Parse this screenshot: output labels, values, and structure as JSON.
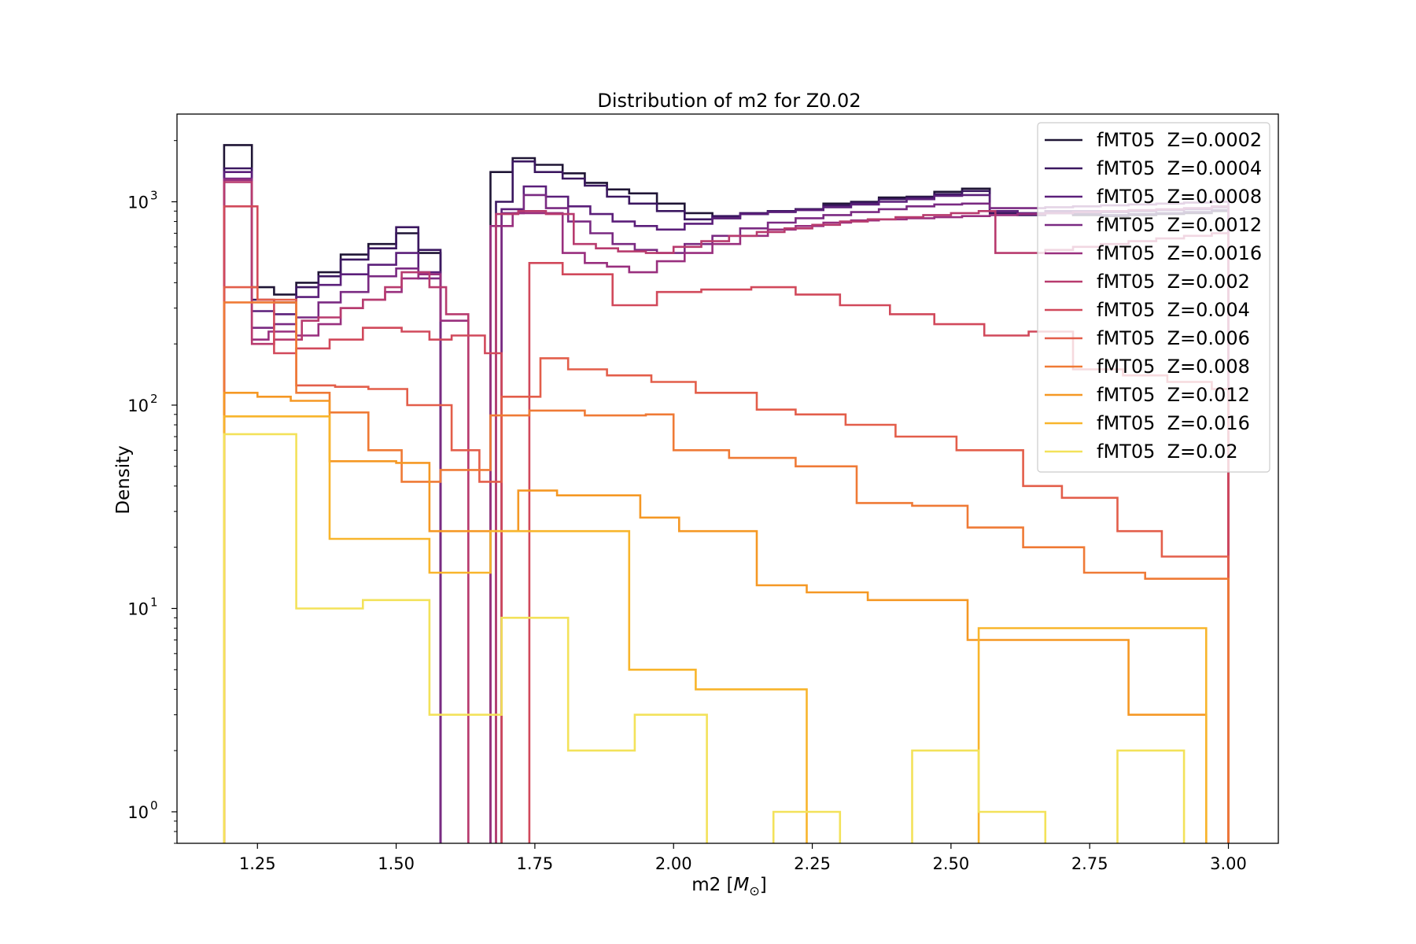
{
  "chart_data": {
    "type": "histogram-step",
    "title": "Distribution of m2 for Z0.02",
    "xlabel": "m2 [",
    "xlabel_math": "M",
    "xlabel_sub": "⊙",
    "xlabel_end": "]",
    "ylabel": "Density",
    "xlim": [
      1.105,
      3.09
    ],
    "ylim": [
      0.7,
      2700
    ],
    "yscale": "log",
    "x_ticks": [
      1.25,
      1.5,
      1.75,
      2.0,
      2.25,
      2.5,
      2.75,
      3.0
    ],
    "x_tick_labels": [
      "1.25",
      "1.50",
      "1.75",
      "2.00",
      "2.25",
      "2.50",
      "2.75",
      "3.00"
    ],
    "y_ticks": [
      1,
      10,
      100,
      1000
    ],
    "y_tick_labels": [
      {
        "base": "10",
        "exp": "0"
      },
      {
        "base": "10",
        "exp": "1"
      },
      {
        "base": "10",
        "exp": "2"
      },
      {
        "base": "10",
        "exp": "3"
      }
    ],
    "legend_location": "top-right",
    "grid": false,
    "series": [
      {
        "name": "fMT05  Z=0.0002",
        "color": "#1f1535",
        "edges": [
          1.19,
          1.24,
          1.28,
          1.32,
          1.36,
          1.4,
          1.45,
          1.5,
          1.54,
          1.58,
          1.62,
          1.67,
          1.71,
          1.75,
          1.8,
          1.84,
          1.88,
          1.92,
          1.97,
          2.02,
          2.07,
          2.12,
          2.17,
          2.22,
          2.27,
          2.32,
          2.37,
          2.42,
          2.47,
          2.52,
          2.57,
          2.62,
          2.67,
          2.72,
          2.77,
          2.82,
          2.87,
          2.92,
          2.97,
          3.0
        ],
        "values": [
          1900,
          380,
          350,
          400,
          450,
          550,
          620,
          700,
          560,
          0,
          0,
          1400,
          1640,
          1520,
          1380,
          1240,
          1150,
          1100,
          980,
          880,
          830,
          870,
          900,
          920,
          980,
          1000,
          1050,
          1060,
          1120,
          1160,
          900,
          870,
          880,
          860,
          850,
          860,
          870,
          880,
          900
        ]
      },
      {
        "name": "fMT05  Z=0.0004",
        "color": "#3b1760",
        "edges": [
          1.19,
          1.24,
          1.28,
          1.32,
          1.36,
          1.4,
          1.45,
          1.5,
          1.54,
          1.58,
          1.62,
          1.68,
          1.71,
          1.75,
          1.8,
          1.84,
          1.88,
          1.92,
          1.97,
          2.02,
          2.07,
          2.12,
          2.17,
          2.22,
          2.27,
          2.32,
          2.37,
          2.42,
          2.47,
          2.52,
          2.57,
          2.62,
          2.67,
          2.72,
          2.77,
          2.82,
          2.87,
          2.92,
          2.97,
          3.0
        ],
        "values": [
          1460,
          330,
          320,
          380,
          430,
          520,
          590,
          750,
          580,
          0,
          0,
          1000,
          1580,
          1400,
          1300,
          1200,
          1060,
          980,
          900,
          820,
          850,
          880,
          900,
          920,
          960,
          990,
          1030,
          1050,
          1090,
          1130,
          880,
          860,
          880,
          870,
          860,
          870,
          880,
          890,
          910
        ]
      },
      {
        "name": "fMT05  Z=0.0008",
        "color": "#5b1f7a",
        "edges": [
          1.19,
          1.24,
          1.28,
          1.32,
          1.36,
          1.4,
          1.45,
          1.5,
          1.54,
          1.58,
          1.62,
          1.69,
          1.73,
          1.77,
          1.81,
          1.85,
          1.89,
          1.93,
          1.97,
          2.02,
          2.07,
          2.12,
          2.17,
          2.22,
          2.27,
          2.32,
          2.37,
          2.42,
          2.47,
          2.52,
          2.57,
          2.62,
          2.67,
          2.72,
          2.77,
          2.82,
          2.87,
          2.92,
          2.97,
          3.0
        ],
        "values": [
          1400,
          290,
          280,
          340,
          390,
          440,
          490,
          560,
          450,
          0,
          0,
          920,
          1190,
          1060,
          950,
          870,
          800,
          760,
          730,
          780,
          830,
          870,
          890,
          910,
          940,
          970,
          1000,
          1030,
          1070,
          1080,
          900,
          880,
          900,
          900,
          890,
          900,
          910,
          920,
          940
        ]
      },
      {
        "name": "fMT05  Z=0.0012",
        "color": "#7a2a82",
        "edges": [
          1.19,
          1.24,
          1.28,
          1.32,
          1.36,
          1.4,
          1.45,
          1.5,
          1.54,
          1.58,
          1.62,
          1.69,
          1.73,
          1.77,
          1.81,
          1.85,
          1.89,
          1.93,
          1.97,
          2.02,
          2.07,
          2.12,
          2.17,
          2.22,
          2.27,
          2.32,
          2.37,
          2.42,
          2.47,
          2.52,
          2.57,
          2.62,
          2.67,
          2.72,
          2.77,
          2.82,
          2.87,
          2.92,
          2.97,
          3.0
        ],
        "values": [
          1300,
          240,
          250,
          270,
          320,
          360,
          430,
          470,
          420,
          0,
          0,
          880,
          1080,
          930,
          800,
          700,
          620,
          580,
          560,
          620,
          680,
          740,
          790,
          830,
          860,
          890,
          920,
          950,
          970,
          980,
          930,
          930,
          940,
          950,
          960,
          970,
          980,
          990,
          1000
        ]
      },
      {
        "name": "fMT05  Z=0.0016",
        "color": "#992f7e",
        "edges": [
          1.19,
          1.24,
          1.27,
          1.32,
          1.36,
          1.4,
          1.44,
          1.48,
          1.51,
          1.54,
          1.58,
          1.63,
          1.67,
          1.71,
          1.75,
          1.8,
          1.84,
          1.88,
          1.92,
          1.97,
          2.02,
          2.07,
          2.12,
          2.17,
          2.22,
          2.27,
          2.32,
          2.37,
          2.42,
          2.47,
          2.52,
          2.57,
          2.62,
          2.67,
          2.72,
          2.77,
          2.82,
          2.87,
          2.92,
          2.97,
          3.0
        ],
        "values": [
          1280,
          210,
          230,
          220,
          250,
          300,
          330,
          360,
          420,
          440,
          260,
          0,
          760,
          880,
          880,
          560,
          500,
          480,
          450,
          510,
          560,
          620,
          680,
          730,
          760,
          790,
          810,
          820,
          830,
          840,
          850,
          860,
          870,
          880,
          890,
          900,
          910,
          920,
          930,
          950
        ]
      },
      {
        "name": "fMT05  Z=0.002",
        "color": "#b83b6e",
        "edges": [
          1.19,
          1.24,
          1.28,
          1.33,
          1.36,
          1.4,
          1.44,
          1.48,
          1.51,
          1.56,
          1.59,
          1.63,
          1.68,
          1.72,
          1.77,
          1.82,
          1.86,
          1.9,
          1.95,
          2.0,
          2.05,
          2.1,
          2.15,
          2.2,
          2.25,
          2.3,
          2.35,
          2.4,
          2.45,
          2.5,
          2.55,
          2.58,
          2.62,
          2.67,
          2.72,
          2.77,
          2.82,
          2.87,
          2.92,
          2.97,
          3.0
        ],
        "values": [
          1250,
          200,
          210,
          260,
          270,
          300,
          330,
          380,
          450,
          380,
          280,
          0,
          870,
          900,
          870,
          620,
          590,
          570,
          560,
          600,
          640,
          680,
          710,
          740,
          770,
          800,
          820,
          840,
          860,
          880,
          900,
          560,
          560,
          580,
          600,
          620,
          640,
          660,
          680,
          700
        ]
      },
      {
        "name": "fMT05  Z=0.004",
        "color": "#d1495b",
        "edges": [
          1.19,
          1.25,
          1.28,
          1.32,
          1.38,
          1.44,
          1.51,
          1.56,
          1.6,
          1.66,
          1.69,
          1.74,
          1.8,
          1.89,
          1.97,
          2.05,
          2.14,
          2.22,
          2.3,
          2.39,
          2.47,
          2.56,
          2.64,
          2.72,
          2.81,
          2.89,
          2.97,
          3.0
        ],
        "values": [
          950,
          330,
          180,
          190,
          210,
          240,
          230,
          210,
          220,
          180,
          0,
          500,
          440,
          310,
          360,
          370,
          380,
          350,
          310,
          280,
          250,
          220,
          230,
          150,
          140,
          130,
          120,
          0
        ]
      },
      {
        "name": "fMT05  Z=0.006",
        "color": "#e35e4a",
        "edges": [
          1.19,
          1.25,
          1.32,
          1.39,
          1.45,
          1.52,
          1.6,
          1.65,
          1.69,
          1.76,
          1.81,
          1.88,
          1.96,
          2.04,
          2.15,
          2.22,
          2.31,
          2.4,
          2.51,
          2.63,
          2.7,
          2.8,
          2.88,
          2.97,
          3.0
        ],
        "values": [
          380,
          330,
          125,
          123,
          120,
          100,
          60,
          42,
          110,
          170,
          150,
          140,
          130,
          115,
          95,
          90,
          80,
          70,
          60,
          40,
          35,
          24,
          18,
          18,
          0
        ]
      },
      {
        "name": "fMT05  Z=0.008",
        "color": "#ef7a36",
        "edges": [
          1.19,
          1.25,
          1.32,
          1.38,
          1.45,
          1.51,
          1.58,
          1.67,
          1.74,
          1.84,
          1.95,
          2.0,
          2.1,
          2.22,
          2.33,
          2.43,
          2.53,
          2.63,
          2.74,
          2.85,
          2.97,
          3.0
        ],
        "values": [
          320,
          320,
          115,
          92,
          60,
          42,
          48,
          89,
          94,
          89,
          90,
          60,
          55,
          50,
          33,
          32,
          25,
          20,
          15,
          14,
          14,
          0
        ]
      },
      {
        "name": "fMT05  Z=0.012",
        "color": "#f59824",
        "edges": [
          1.19,
          1.25,
          1.31,
          1.38,
          1.44,
          1.5,
          1.56,
          1.62,
          1.72,
          1.79,
          1.94,
          2.01,
          2.15,
          2.24,
          2.35,
          2.43,
          2.53,
          2.62,
          2.72,
          2.82,
          2.93,
          2.96
        ],
        "values": [
          115,
          110,
          105,
          53,
          53,
          52,
          24,
          24,
          38,
          36,
          28,
          24,
          13,
          12,
          11,
          11,
          7,
          7,
          7,
          3,
          3,
          0
        ]
      },
      {
        "name": "fMT05  Z=0.016",
        "color": "#f8b52c",
        "edges": [
          1.19,
          1.25,
          1.31,
          1.38,
          1.44,
          1.5,
          1.56,
          1.61,
          1.67,
          1.73,
          1.79,
          1.86,
          1.92,
          1.98,
          2.04,
          2.1,
          2.16,
          2.24,
          2.31,
          2.39,
          2.47,
          2.55,
          2.61,
          2.67,
          2.74,
          2.8,
          2.87,
          2.93,
          2.96
        ],
        "values": [
          88,
          88,
          88,
          22,
          22,
          22,
          15,
          15,
          24,
          24,
          24,
          24,
          5,
          5,
          4,
          4,
          4,
          0,
          0,
          0,
          0,
          8,
          8,
          8,
          8,
          8,
          8,
          8,
          0
        ]
      },
      {
        "name": "fMT05  Z=0.02",
        "color": "#f3e25a",
        "edges": [
          1.19,
          1.25,
          1.32,
          1.38,
          1.44,
          1.52,
          1.56,
          1.65,
          1.69,
          1.76,
          1.81,
          1.93,
          2.06,
          2.18,
          2.3,
          2.43,
          2.55,
          2.67,
          2.8,
          2.92
        ],
        "values": [
          72,
          72,
          10,
          10,
          11,
          11,
          3,
          3,
          9,
          9,
          2,
          3,
          0,
          1,
          0,
          2,
          1,
          0,
          2,
          0
        ]
      }
    ]
  }
}
